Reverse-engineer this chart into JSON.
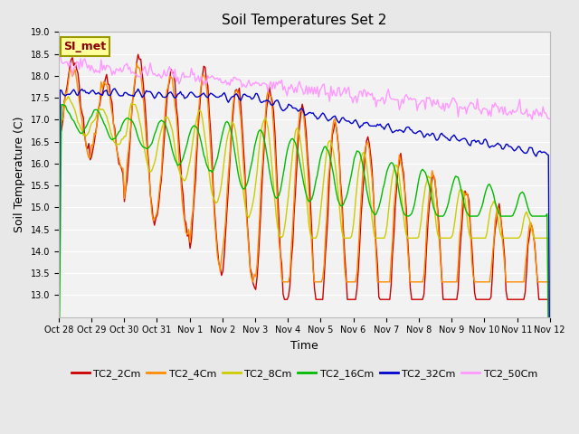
{
  "title": "Soil Temperatures Set 2",
  "xlabel": "Time",
  "ylabel": "Soil Temperature (C)",
  "ylim": [
    12.5,
    19.0
  ],
  "yticks": [
    13.0,
    13.5,
    14.0,
    14.5,
    15.0,
    15.5,
    16.0,
    16.5,
    17.0,
    17.5,
    18.0,
    18.5,
    19.0
  ],
  "xtick_labels": [
    "Oct 28",
    "Oct 29",
    "Oct 30",
    "Oct 31",
    "Nov 1",
    "Nov 2",
    "Nov 3",
    "Nov 4",
    "Nov 5",
    "Nov 6",
    "Nov 7",
    "Nov 8",
    "Nov 9",
    "Nov 10",
    "Nov 11",
    "Nov 12"
  ],
  "series_names": [
    "TC2_2Cm",
    "TC2_4Cm",
    "TC2_8Cm",
    "TC2_16Cm",
    "TC2_32Cm",
    "TC2_50Cm"
  ],
  "series_colors": [
    "#CC0000",
    "#FF8C00",
    "#CCCC00",
    "#00BB00",
    "#0000CC",
    "#FF99FF"
  ],
  "series_lw": [
    1.0,
    1.0,
    1.0,
    1.0,
    1.0,
    1.0
  ],
  "bg_color": "#E8E8E8",
  "plot_bg": "#F2F2F2",
  "grid_color": "#FFFFFF",
  "annotation_text": "SI_met",
  "annotation_color": "#8B0000",
  "annotation_bg": "#FFFF99",
  "annotation_border": "#999900",
  "title_fontsize": 11,
  "axis_fontsize": 9,
  "tick_fontsize": 7,
  "legend_fontsize": 8
}
